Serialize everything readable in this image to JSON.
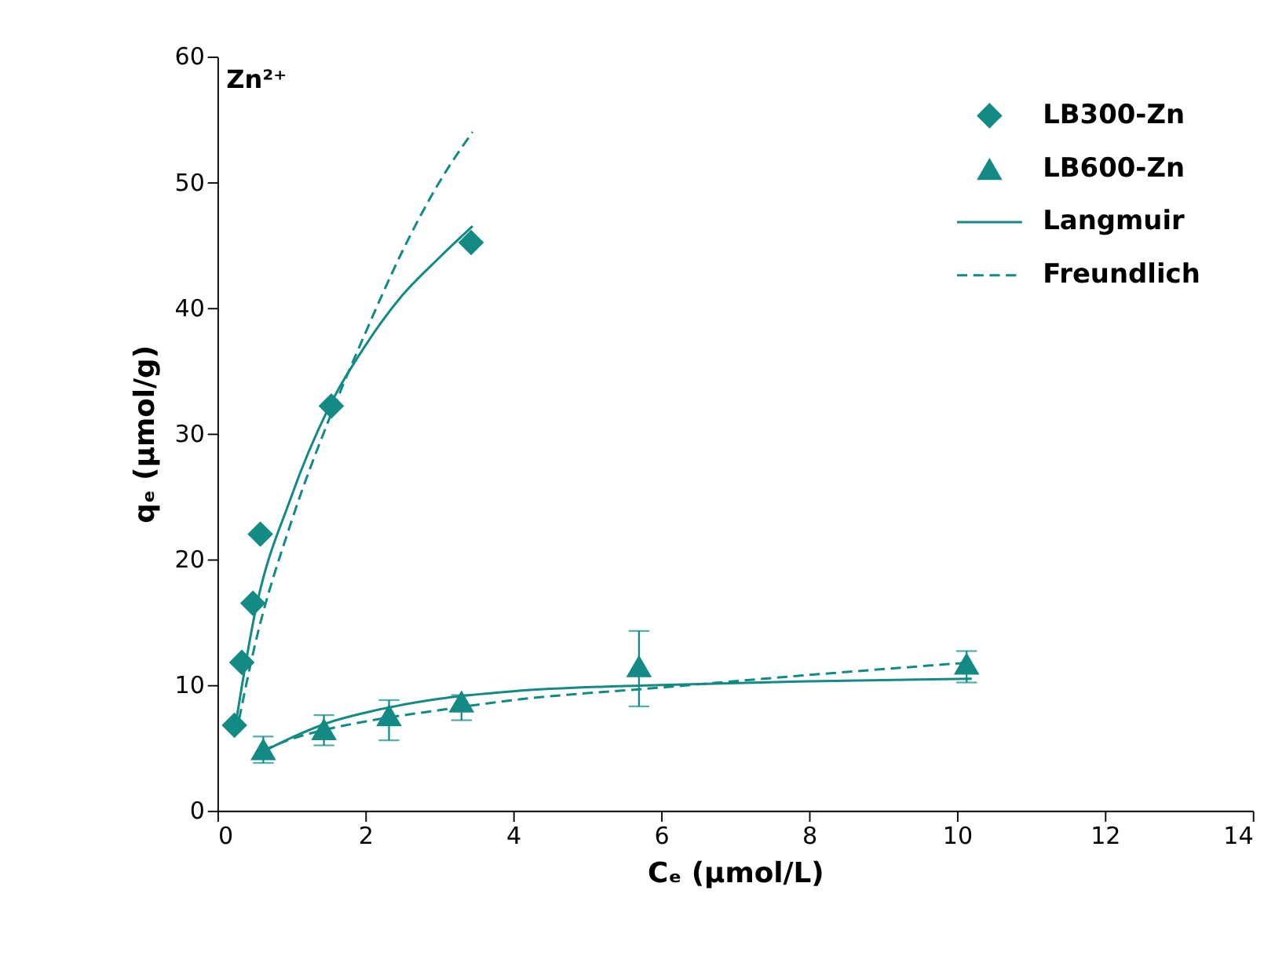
{
  "chart_data": {
    "type": "scatter",
    "xlabel": "Cₑ (μmol/L)",
    "ylabel": "qₑ (μmol/g)",
    "annotations": [
      "Zn²⁺"
    ],
    "xlim": [
      0,
      14
    ],
    "xticks": [
      0,
      2,
      4,
      6,
      8,
      10,
      12,
      14
    ],
    "ylim": [
      0,
      60
    ],
    "yticks": [
      0,
      10,
      20,
      30,
      40,
      50,
      60
    ],
    "legend": "top right",
    "series": [
      {
        "name": "LB300-Zn",
        "marker": "diamond",
        "color": "#138a84",
        "x": [
          0.23,
          0.33,
          0.48,
          0.58,
          1.54,
          3.43
        ],
        "values": [
          6.8,
          11.8,
          16.5,
          22.0,
          32.2,
          45.2
        ]
      },
      {
        "name": "LB600-Zn",
        "marker": "triangle",
        "color": "#138a84",
        "x": [
          0.62,
          1.44,
          2.32,
          3.3,
          5.7,
          10.13
        ],
        "values": [
          4.9,
          6.5,
          7.6,
          8.7,
          11.5,
          11.7
        ],
        "errors": [
          [
            3.8,
            5.9
          ],
          [
            5.2,
            7.6
          ],
          [
            5.6,
            8.8
          ],
          [
            7.2,
            9.2
          ],
          [
            8.3,
            14.3
          ],
          [
            10.2,
            12.7
          ]
        ]
      },
      {
        "name": "Langmuir",
        "type": "line",
        "line_style": "solid",
        "color": "#138a84",
        "x": [
          0.25,
          0.5,
          1,
          1.5,
          2,
          2.5,
          3,
          3.45,
          null,
          0.62,
          1,
          1.5,
          2,
          3,
          4,
          6,
          8,
          10.2
        ],
        "values": [
          7,
          15.5,
          25,
          32,
          37,
          41,
          44,
          46.5,
          null,
          4.7,
          5.8,
          7,
          7.8,
          8.9,
          9.5,
          10,
          10.3,
          10.5
        ]
      },
      {
        "name": "Freundlich",
        "type": "line",
        "line_style": "dashed",
        "color": "#138a84",
        "x": [
          0.25,
          0.5,
          1,
          1.5,
          2,
          2.5,
          3,
          3.45,
          null,
          0.62,
          1,
          1.5,
          2,
          3,
          4,
          6,
          8,
          10.2
        ],
        "values": [
          6,
          13,
          23,
          31,
          38,
          44.5,
          50,
          54,
          null,
          4.8,
          5.7,
          6.5,
          7.1,
          8,
          8.8,
          9.8,
          10.8,
          11.8
        ]
      }
    ]
  }
}
